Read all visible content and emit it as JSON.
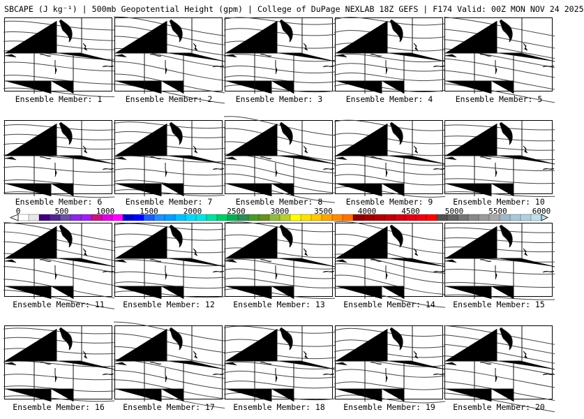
{
  "header": {
    "title": "SBCAPE (J kg⁻¹) | 500mb Geopotential Height (gpm) | College of DuPage NEXLAB 18Z GEFS | F174 Valid: 00Z MON NOV 24 2025"
  },
  "members": [
    {
      "label": "Ensemble Member: 1"
    },
    {
      "label": "Ensemble Member: 2"
    },
    {
      "label": "Ensemble Member: 3"
    },
    {
      "label": "Ensemble Member: 4"
    },
    {
      "label": "Ensemble Member: 5"
    },
    {
      "label": "Ensemble Member: 6"
    },
    {
      "label": "Ensemble Member: 7"
    },
    {
      "label": "Ensemble Member: 8"
    },
    {
      "label": "Ensemble Member: 9"
    },
    {
      "label": "Ensemble Member: 10"
    },
    {
      "label": "Ensemble Member: 11"
    },
    {
      "label": "Ensemble Member: 12"
    },
    {
      "label": "Ensemble Member: 13"
    },
    {
      "label": "Ensemble Member: 14"
    },
    {
      "label": "Ensemble Member: 15"
    },
    {
      "label": "Ensemble Member: 16"
    },
    {
      "label": "Ensemble Member: 17"
    },
    {
      "label": "Ensemble Member: 18"
    },
    {
      "label": "Ensemble Member: 19"
    },
    {
      "label": "Ensemble Member: 20"
    }
  ],
  "colorbar": {
    "labels": [
      "0",
      "500",
      "1000",
      "1500",
      "2000",
      "2500",
      "3000",
      "3500",
      "4000",
      "4500",
      "5000",
      "5500",
      "6000"
    ],
    "colors": [
      "#ffffff",
      "#e8e8e8",
      "#3f007d",
      "#54278f",
      "#6a51a3",
      "#8a2be2",
      "#a020f0",
      "#c71585",
      "#e000e0",
      "#ff00ff",
      "#0000cd",
      "#0000ff",
      "#1e5cff",
      "#1e90ff",
      "#00a0ff",
      "#00bfff",
      "#00d8ff",
      "#00e5e5",
      "#00e0a0",
      "#00cc66",
      "#00b050",
      "#2e8b57",
      "#4a9a2a",
      "#6b8e23",
      "#8fbc3f",
      "#b5d02f",
      "#ffff00",
      "#ffe000",
      "#ffc800",
      "#ffa500",
      "#ff8c00",
      "#ff7000",
      "#8b0000",
      "#a00000",
      "#b00000",
      "#c00000",
      "#d00010",
      "#e00010",
      "#ee0010",
      "#ff0000",
      "#505050",
      "#626262",
      "#747474",
      "#888888",
      "#9a9a9a",
      "#aaaaaa",
      "#a0b8c8",
      "#a8c8d8",
      "#b0d0e0",
      "#c0e0ee"
    ]
  }
}
